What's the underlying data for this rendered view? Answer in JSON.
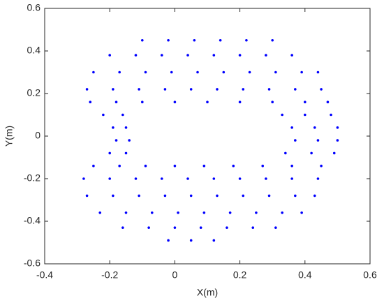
{
  "chart_data": {
    "type": "scatter",
    "x_label": "X(m)",
    "y_label": "Y(m)",
    "xlim": [
      -0.4,
      0.6
    ],
    "xticks": [
      -0.4,
      -0.2,
      0,
      0.2,
      0.4,
      0.6
    ],
    "ylim": [
      -0.6,
      0.6
    ],
    "yticks": [
      -0.6,
      -0.4,
      -0.2,
      0,
      0.2,
      0.4,
      0.6
    ],
    "grid": false,
    "color": "#0000ff",
    "x": [
      -0.1,
      -0.02,
      0.06,
      0.14,
      0.22,
      0.3,
      -0.2,
      -0.12,
      -0.04,
      0.04,
      0.12,
      0.2,
      0.28,
      0.36,
      -0.25,
      -0.17,
      -0.09,
      -0.01,
      0.07,
      0.15,
      0.23,
      0.31,
      0.39,
      0.44,
      -0.27,
      -0.19,
      -0.11,
      -0.03,
      0.05,
      0.13,
      0.21,
      0.29,
      0.37,
      0.45,
      -0.26,
      -0.18,
      -0.1,
      0,
      0.1,
      0.2,
      0.3,
      0.4,
      0.47,
      -0.22,
      -0.16,
      0.33,
      0.4,
      0.48,
      -0.19,
      -0.15,
      0.36,
      0.43,
      0.5,
      -0.18,
      -0.14,
      0.37,
      0.44,
      0.5,
      -0.2,
      -0.15,
      0.34,
      0.42,
      0.49,
      -0.25,
      -0.17,
      -0.09,
      0,
      0.09,
      0.18,
      0.27,
      0.36,
      0.45,
      -0.28,
      -0.2,
      -0.12,
      -0.04,
      0.04,
      0.12,
      0.2,
      0.28,
      0.36,
      0.44,
      -0.27,
      -0.19,
      -0.11,
      -0.03,
      0.05,
      0.13,
      0.21,
      0.29,
      0.37,
      0.43,
      -0.23,
      -0.15,
      -0.07,
      0.01,
      0.09,
      0.17,
      0.25,
      0.33,
      0.39,
      -0.16,
      -0.08,
      0,
      0.08,
      0.16,
      0.24,
      0.31,
      -0.02,
      0.05,
      0.12
    ],
    "values": [
      0.45,
      0.45,
      0.45,
      0.45,
      0.45,
      0.45,
      0.38,
      0.38,
      0.38,
      0.38,
      0.38,
      0.38,
      0.38,
      0.38,
      0.3,
      0.3,
      0.3,
      0.3,
      0.3,
      0.3,
      0.3,
      0.3,
      0.3,
      0.3,
      0.22,
      0.22,
      0.22,
      0.22,
      0.22,
      0.22,
      0.22,
      0.22,
      0.22,
      0.22,
      0.16,
      0.16,
      0.16,
      0.16,
      0.16,
      0.16,
      0.16,
      0.16,
      0.16,
      0.1,
      0.1,
      0.1,
      0.1,
      0.1,
      0.04,
      0.04,
      0.04,
      0.04,
      0.04,
      -0.02,
      -0.02,
      -0.02,
      -0.02,
      -0.02,
      -0.08,
      -0.08,
      -0.08,
      -0.08,
      -0.08,
      -0.14,
      -0.14,
      -0.14,
      -0.14,
      -0.14,
      -0.14,
      -0.14,
      -0.14,
      -0.14,
      -0.2,
      -0.2,
      -0.2,
      -0.2,
      -0.2,
      -0.2,
      -0.2,
      -0.2,
      -0.2,
      -0.2,
      -0.28,
      -0.28,
      -0.28,
      -0.28,
      -0.28,
      -0.28,
      -0.28,
      -0.28,
      -0.28,
      -0.28,
      -0.36,
      -0.36,
      -0.36,
      -0.36,
      -0.36,
      -0.36,
      -0.36,
      -0.36,
      -0.36,
      -0.43,
      -0.43,
      -0.43,
      -0.43,
      -0.43,
      -0.43,
      -0.43,
      -0.49,
      -0.49,
      -0.49
    ]
  }
}
